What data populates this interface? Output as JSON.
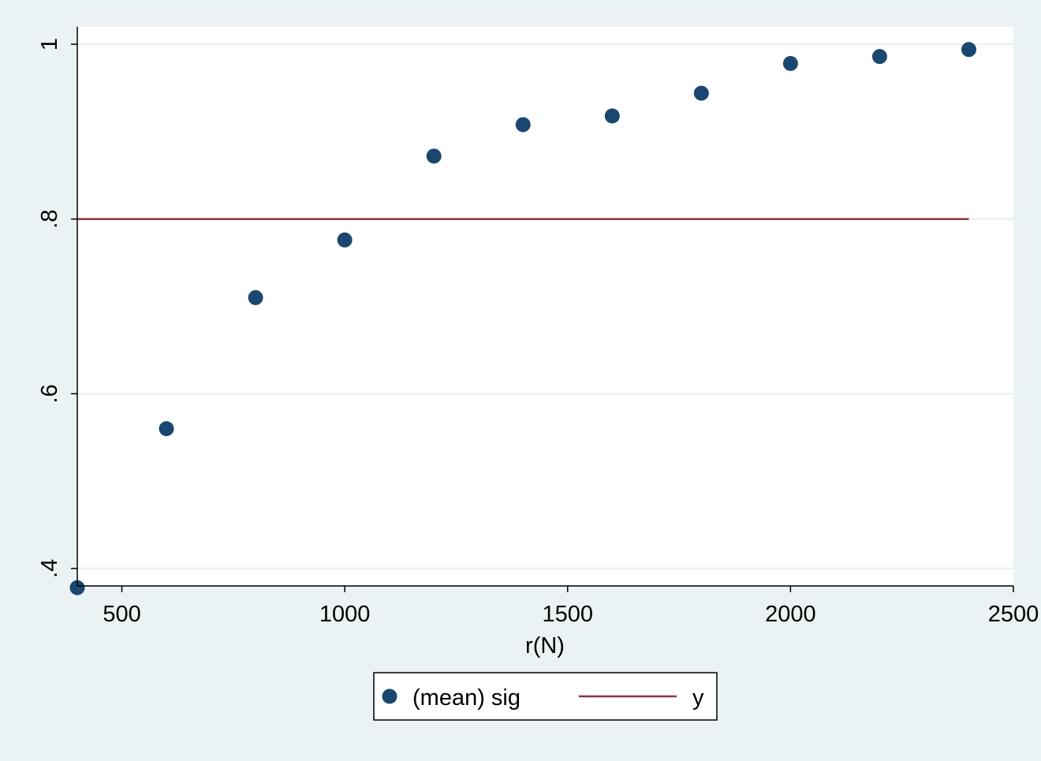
{
  "chart_data": {
    "type": "scatter",
    "title": "",
    "xlabel": "r(N)",
    "ylabel": "",
    "xlim": [
      400,
      2500
    ],
    "ylim": [
      0.38,
      1.02
    ],
    "xticks": [
      500,
      1000,
      1500,
      2000,
      2500
    ],
    "xtick_labels": [
      "500",
      "1000",
      "1500",
      "2000",
      "2500"
    ],
    "yticks": [
      0.4,
      0.6,
      0.8,
      1.0
    ],
    "ytick_labels": [
      ".4",
      ".6",
      ".8",
      "1"
    ],
    "grid": true,
    "legend_position": "bottom",
    "colors": {
      "background": "#eaf2f3",
      "plot_background": "#ffffff",
      "scatter": "#1a476f",
      "line": "#90353b",
      "grid": "#eaf2f3"
    },
    "series": [
      {
        "name": "(mean) sig",
        "kind": "scatter",
        "x": [
          400,
          600,
          800,
          1000,
          1200,
          1400,
          1600,
          1800,
          2000,
          2200,
          2400
        ],
        "y": [
          0.378,
          0.56,
          0.71,
          0.776,
          0.872,
          0.908,
          0.918,
          0.944,
          0.978,
          0.986,
          0.994
        ]
      },
      {
        "name": "y",
        "kind": "line",
        "x": [
          400,
          2400
        ],
        "y": [
          0.8,
          0.8
        ]
      }
    ]
  }
}
